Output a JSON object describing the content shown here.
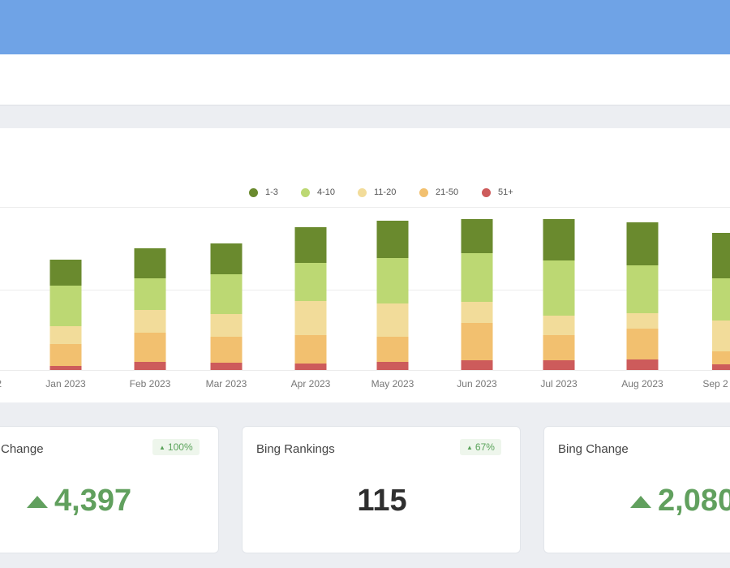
{
  "colors": {
    "header": "#6fa3e6",
    "s13": "#6a8a2e",
    "s410": "#bcd873",
    "s1120": "#f2dc9a",
    "s2150": "#f2c06f",
    "s51": "#cd5b5b",
    "positive": "#61a05e"
  },
  "chart_data": {
    "type": "bar",
    "stacked": true,
    "x_partial_labels": [
      "2",
      "Sep 2"
    ],
    "categories": [
      "Jan 2023",
      "Feb 2023",
      "Mar 2023",
      "Apr 2023",
      "May 2023",
      "Jun 2023",
      "Jul 2023",
      "Aug 2023"
    ],
    "series": [
      {
        "name": "1-3",
        "color": "#6a8a2e",
        "values": [
          32,
          37,
          38,
          44,
          46,
          42,
          51,
          53
        ]
      },
      {
        "name": "4-10",
        "color": "#bcd873",
        "values": [
          50,
          39,
          49,
          47,
          56,
          60,
          68,
          59
        ]
      },
      {
        "name": "11-20",
        "color": "#f2dc9a",
        "values": [
          22,
          28,
          28,
          42,
          41,
          26,
          24,
          19
        ]
      },
      {
        "name": "21-50",
        "color": "#f2c06f",
        "values": [
          27,
          36,
          32,
          35,
          31,
          46,
          31,
          38
        ]
      },
      {
        "name": "51+",
        "color": "#cd5b5b",
        "values": [
          5,
          10,
          9,
          8,
          10,
          12,
          12,
          13
        ]
      }
    ],
    "legend_position": "top-center",
    "grid": true
  },
  "cards": [
    {
      "title": "Change",
      "badge": "100%",
      "value": "4,397"
    },
    {
      "title": "Bing Rankings",
      "badge": "67%",
      "value": "115"
    },
    {
      "title": "Bing Change",
      "value": "2,080"
    }
  ]
}
